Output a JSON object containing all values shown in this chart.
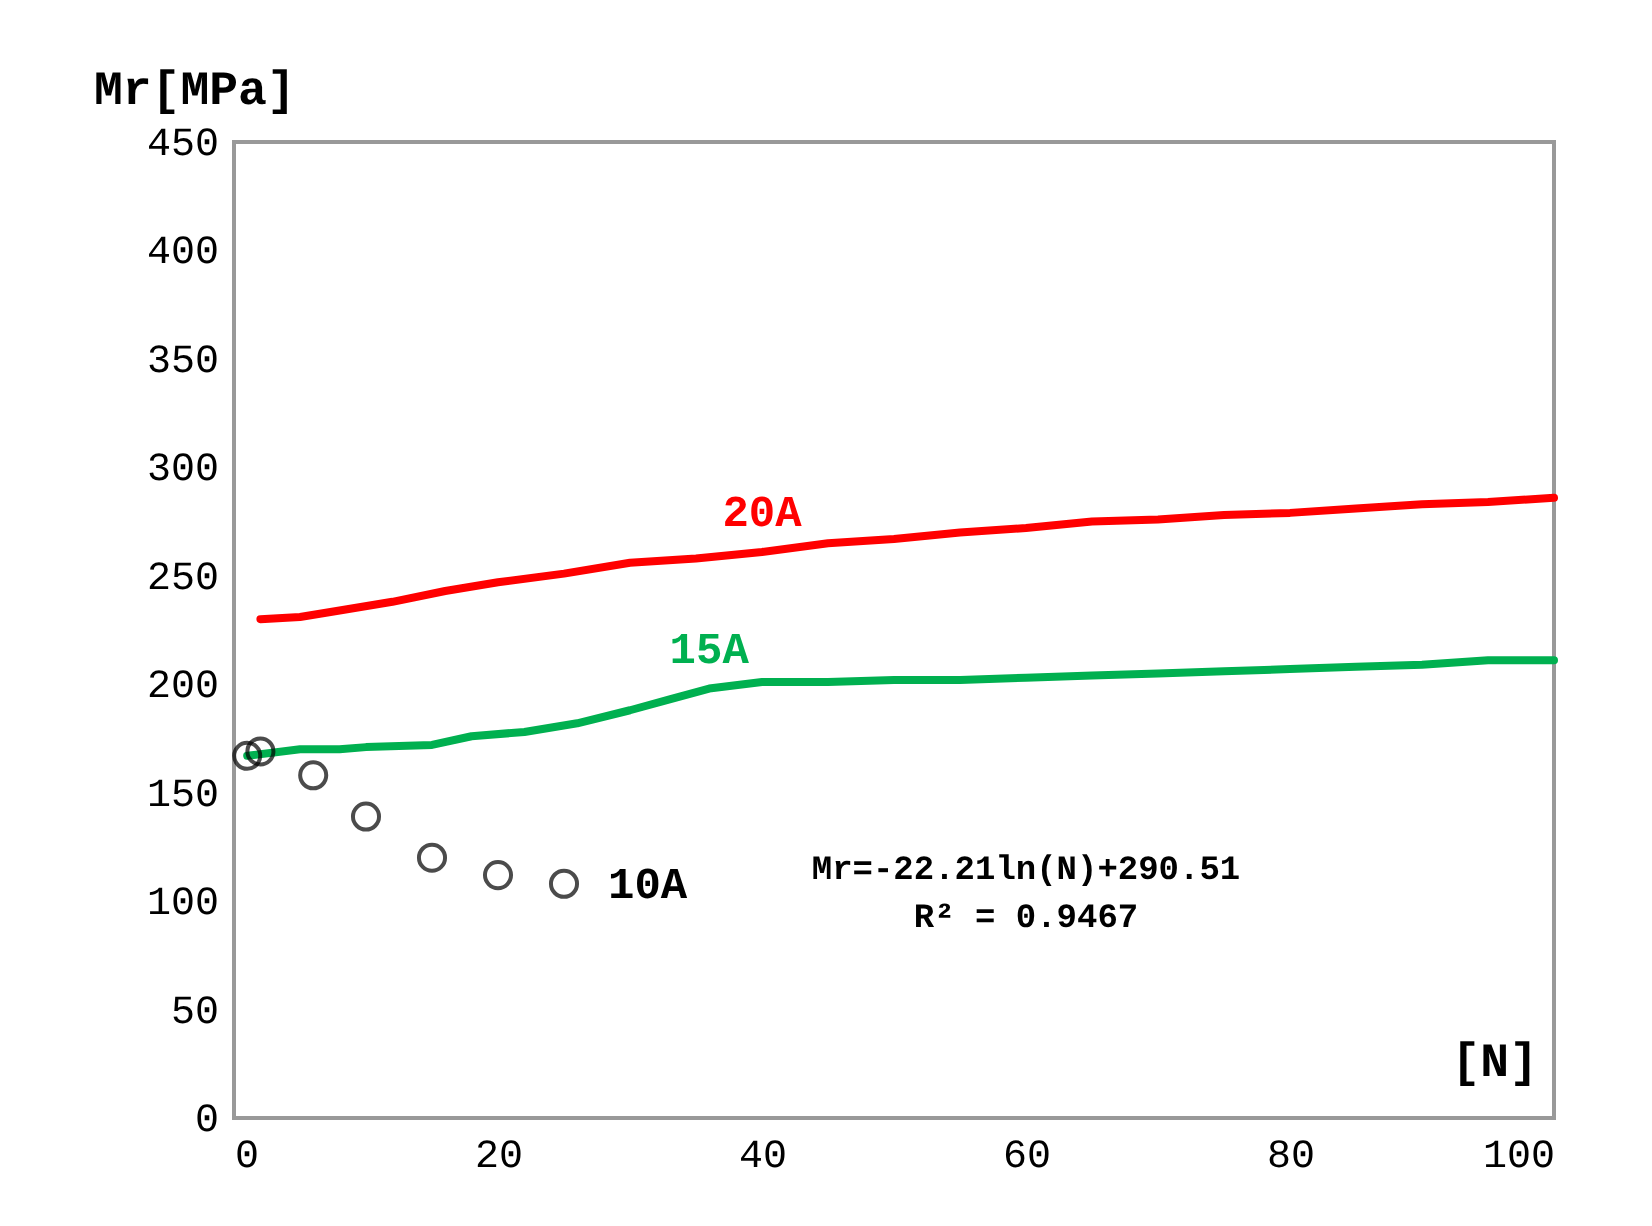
{
  "chart_data": {
    "type": "line",
    "xlabel": "[N]",
    "ylabel": "Mr[MPa]",
    "xlim": [
      0,
      100
    ],
    "xticks": [
      0,
      20,
      40,
      60,
      80,
      100
    ],
    "ylim": [
      0,
      450
    ],
    "yticks": [
      0,
      50,
      100,
      150,
      200,
      250,
      300,
      350,
      400,
      450
    ],
    "grid": false,
    "series": [
      {
        "name": "20A",
        "color": "#ff0000",
        "marker": "none",
        "x": [
          2,
          5,
          8,
          12,
          16,
          20,
          25,
          30,
          35,
          40,
          45,
          50,
          55,
          60,
          65,
          70,
          75,
          80,
          85,
          90,
          95,
          100
        ],
        "values": [
          230,
          231,
          234,
          238,
          243,
          247,
          251,
          256,
          258,
          261,
          265,
          267,
          270,
          272,
          275,
          276,
          278,
          279,
          281,
          283,
          284,
          286
        ]
      },
      {
        "name": "15A",
        "color": "#00b050",
        "marker": "none",
        "x": [
          1,
          5,
          8,
          10,
          15,
          18,
          22,
          26,
          30,
          33,
          36,
          40,
          45,
          50,
          55,
          60,
          65,
          70,
          75,
          80,
          85,
          90,
          95,
          100
        ],
        "values": [
          167,
          170,
          170,
          171,
          172,
          176,
          178,
          182,
          188,
          193,
          198,
          201,
          201,
          202,
          202,
          203,
          204,
          205,
          206,
          207,
          208,
          209,
          211,
          211
        ]
      },
      {
        "name": "10A",
        "color": "#000000",
        "type": "scatter",
        "marker": "circle",
        "x": [
          1,
          2,
          6,
          10,
          15,
          20,
          25
        ],
        "values": [
          167,
          169,
          158,
          139,
          120,
          112,
          108
        ]
      }
    ],
    "annotations": [
      "Mr=-22.21ln(N)+290.51",
      "R² = 0.9467"
    ]
  }
}
